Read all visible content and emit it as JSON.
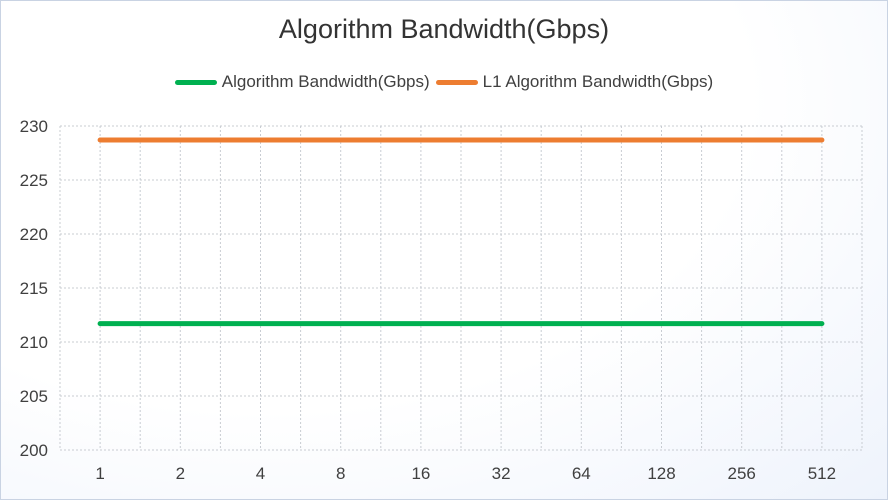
{
  "chart_data": {
    "type": "line",
    "title": "Algorithm Bandwidth(Gbps)",
    "categories": [
      "1",
      "2",
      "4",
      "8",
      "16",
      "32",
      "64",
      "128",
      "256",
      "512"
    ],
    "series": [
      {
        "name": "Algorithm Bandwidth(Gbps)",
        "color": "#00b050",
        "values": [
          211.7,
          211.7,
          211.7,
          211.7,
          211.7,
          211.7,
          211.7,
          211.7,
          211.7,
          211.7
        ]
      },
      {
        "name": "L1 Algorithm Bandwidth(Gbps)",
        "color": "#ed7d31",
        "values": [
          228.7,
          228.7,
          228.7,
          228.7,
          228.7,
          228.7,
          228.7,
          228.7,
          228.7,
          228.7
        ]
      }
    ],
    "xlabel": "",
    "ylabel": "",
    "ylim": [
      200,
      230
    ],
    "yticks": [
      "200",
      "205",
      "210",
      "215",
      "220",
      "225",
      "230"
    ],
    "grid": true,
    "legend": "top"
  }
}
